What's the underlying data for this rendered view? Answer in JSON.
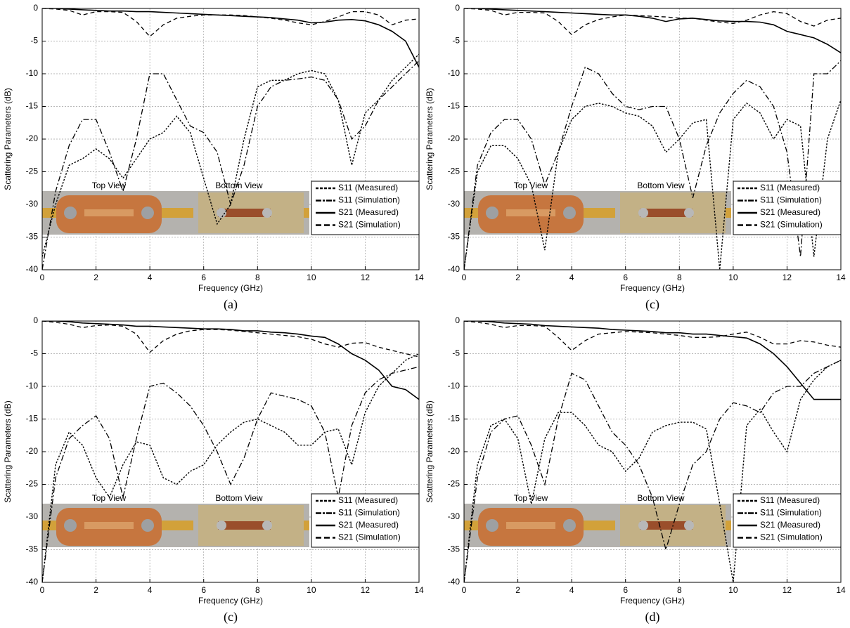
{
  "chart_data": [
    {
      "type": "line",
      "caption": "(a)",
      "xlabel": "Frequency (GHz)",
      "ylabel": "Scattering Parameters (dB)",
      "inset_labels": [
        "Top View",
        "Bottom View"
      ],
      "legend": "lower right",
      "grid": true,
      "xlim": [
        0,
        14
      ],
      "ylim": [
        -40,
        0
      ],
      "xticks": [
        0,
        2,
        4,
        6,
        8,
        10,
        12,
        14
      ],
      "yticks": [
        0,
        -5,
        -10,
        -15,
        -20,
        -25,
        -30,
        -35,
        -40
      ],
      "x": [
        0,
        0.5,
        1,
        1.5,
        2,
        2.5,
        3,
        3.5,
        4,
        4.5,
        5,
        5.5,
        6,
        6.5,
        7,
        7.5,
        8,
        8.5,
        9,
        9.5,
        10,
        10.5,
        11,
        11.5,
        12,
        12.5,
        13,
        13.5,
        14
      ],
      "series": [
        {
          "name": "S11 (Measured)",
          "style": "dotted",
          "color": "#000000",
          "values": [
            -38,
            -30,
            -24,
            -23,
            -21.5,
            -23,
            -26,
            -23,
            -20,
            -19,
            -16.5,
            -19,
            -26,
            -33,
            -30,
            -20,
            -12,
            -11,
            -11,
            -10,
            -9.5,
            -10,
            -14,
            -24,
            -16,
            -14,
            -11,
            -9,
            -7
          ]
        },
        {
          "name": "S11 (Simulation)",
          "style": "dash-dot",
          "color": "#000000",
          "values": [
            -40,
            -28,
            -21,
            -17,
            -17,
            -22,
            -28,
            -20,
            -10,
            -10,
            -14,
            -18,
            -19,
            -22,
            -30,
            -24,
            -15,
            -12,
            -11,
            -10.8,
            -10.5,
            -11,
            -14,
            -20,
            -18,
            -14,
            -12,
            -10,
            -8
          ]
        },
        {
          "name": "S21 (Measured)",
          "style": "solid",
          "color": "#000000",
          "values": [
            0,
            0,
            -0.1,
            -0.2,
            -0.3,
            -0.4,
            -0.4,
            -0.5,
            -0.5,
            -0.6,
            -0.7,
            -0.8,
            -0.9,
            -1,
            -1.1,
            -1.2,
            -1.3,
            -1.4,
            -1.6,
            -1.8,
            -2.2,
            -2.1,
            -1.8,
            -1.7,
            -1.9,
            -2.5,
            -3.5,
            -5,
            -9
          ]
        },
        {
          "name": "S21 (Simulation)",
          "style": "dashed",
          "color": "#000000",
          "values": [
            0,
            -0.1,
            -0.3,
            -1,
            -0.5,
            -0.5,
            -0.6,
            -2,
            -4.3,
            -2.5,
            -1.5,
            -1.2,
            -1,
            -1,
            -1,
            -1.1,
            -1.3,
            -1.5,
            -1.8,
            -2.2,
            -2.5,
            -2,
            -1.3,
            -0.5,
            -0.5,
            -1,
            -2.5,
            -1.8,
            -1.6
          ]
        }
      ]
    },
    {
      "type": "line",
      "caption": "(c)",
      "xlabel": "Frequency (GHz)",
      "ylabel": "Scattering Parameters (dB)",
      "inset_labels": [
        "Top View",
        "Bottom View"
      ],
      "legend": "lower right",
      "grid": true,
      "xlim": [
        0,
        14
      ],
      "ylim": [
        -40,
        0
      ],
      "xticks": [
        0,
        2,
        4,
        6,
        8,
        10,
        12,
        14
      ],
      "yticks": [
        0,
        -5,
        -10,
        -15,
        -20,
        -25,
        -30,
        -35,
        -40
      ],
      "x": [
        0,
        0.5,
        1,
        1.5,
        2,
        2.5,
        3,
        3.5,
        4,
        4.5,
        5,
        5.5,
        6,
        6.5,
        7,
        7.5,
        8,
        8.5,
        9,
        9.5,
        10,
        10.5,
        11,
        11.5,
        12,
        12.5,
        13,
        13.5,
        14
      ],
      "series": [
        {
          "name": "S11 (Measured)",
          "style": "dotted",
          "color": "#000000",
          "values": [
            -40,
            -25,
            -21,
            -21,
            -23,
            -27,
            -37,
            -22,
            -17,
            -15,
            -14.5,
            -15,
            -16,
            -16.5,
            -18,
            -22,
            -20,
            -17.5,
            -17,
            -40,
            -17,
            -14.5,
            -16,
            -20,
            -17,
            -18,
            -38,
            -20,
            -14
          ]
        },
        {
          "name": "S11 (Simulation)",
          "style": "dash-dot",
          "color": "#000000",
          "values": [
            -40,
            -24,
            -19,
            -17,
            -17,
            -20,
            -27,
            -22,
            -15,
            -9,
            -10,
            -13,
            -15,
            -15.5,
            -15,
            -15,
            -20,
            -29,
            -21,
            -16,
            -13,
            -11,
            -12,
            -15,
            -22,
            -38,
            -10,
            -10,
            -8
          ]
        },
        {
          "name": "S21 (Measured)",
          "style": "solid",
          "color": "#000000",
          "values": [
            0,
            0,
            -0.1,
            -0.2,
            -0.3,
            -0.4,
            -0.5,
            -0.6,
            -0.7,
            -0.8,
            -0.9,
            -1,
            -1,
            -1.2,
            -1.5,
            -2,
            -1.6,
            -1.5,
            -1.7,
            -1.9,
            -2,
            -2,
            -2.1,
            -2.5,
            -3.5,
            -4,
            -4.5,
            -5.5,
            -6.8
          ]
        },
        {
          "name": "S21 (Simulation)",
          "style": "dashed",
          "color": "#000000",
          "values": [
            0,
            -0.1,
            -0.3,
            -1,
            -0.6,
            -0.6,
            -0.7,
            -2,
            -4,
            -2.5,
            -1.7,
            -1.3,
            -1,
            -1.1,
            -1.2,
            -1.3,
            -1.5,
            -1.5,
            -1.8,
            -2.1,
            -2.3,
            -1.8,
            -1,
            -0.5,
            -0.8,
            -2,
            -2.7,
            -1.8,
            -1.5
          ]
        }
      ]
    },
    {
      "type": "line",
      "caption": "(c)",
      "xlabel": "Frequency (GHz)",
      "ylabel": "Scattering Parameters (dB)",
      "inset_labels": [
        "Top View",
        "Bottom View"
      ],
      "legend": "lower right",
      "grid": true,
      "xlim": [
        0,
        14
      ],
      "ylim": [
        -40,
        0
      ],
      "xticks": [
        0,
        2,
        4,
        6,
        8,
        10,
        12,
        14
      ],
      "yticks": [
        0,
        -5,
        -10,
        -15,
        -20,
        -25,
        -30,
        -35,
        -40
      ],
      "x": [
        0,
        0.5,
        1,
        1.5,
        2,
        2.5,
        3,
        3.5,
        4,
        4.5,
        5,
        5.5,
        6,
        6.5,
        7,
        7.5,
        8,
        8.5,
        9,
        9.5,
        10,
        10.5,
        11,
        11.5,
        12,
        12.5,
        13,
        13.5,
        14
      ],
      "series": [
        {
          "name": "S11 (Measured)",
          "style": "dotted",
          "color": "#000000",
          "values": [
            -40,
            -22,
            -17,
            -19,
            -24,
            -27,
            -22,
            -18.5,
            -19,
            -24,
            -25,
            -23,
            -22,
            -19,
            -17,
            -15.5,
            -15,
            -16,
            -17,
            -19,
            -19,
            -17,
            -16.5,
            -22,
            -14,
            -10,
            -8,
            -6,
            -5
          ]
        },
        {
          "name": "S11 (Simulation)",
          "style": "dash-dot",
          "color": "#000000",
          "values": [
            -40,
            -24,
            -18,
            -16,
            -14.5,
            -18,
            -27,
            -18,
            -10,
            -9.5,
            -11,
            -13,
            -16,
            -20,
            -25,
            -21,
            -15,
            -11,
            -11.5,
            -12,
            -13,
            -17,
            -27,
            -16,
            -11,
            -9,
            -8,
            -7.5,
            -7
          ]
        },
        {
          "name": "S21 (Measured)",
          "style": "solid",
          "color": "#000000",
          "values": [
            0,
            0,
            -0.1,
            -0.3,
            -0.4,
            -0.5,
            -0.6,
            -0.8,
            -0.8,
            -0.9,
            -1,
            -1.1,
            -1.2,
            -1.2,
            -1.3,
            -1.5,
            -1.5,
            -1.7,
            -1.8,
            -2,
            -2.3,
            -2.5,
            -3.5,
            -5,
            -6,
            -7.5,
            -10,
            -10.5,
            -12
          ]
        },
        {
          "name": "S21 (Simulation)",
          "style": "dashed",
          "color": "#000000",
          "values": [
            0,
            -0.2,
            -0.5,
            -1,
            -0.7,
            -0.6,
            -0.8,
            -2,
            -4.8,
            -3,
            -2,
            -1.5,
            -1.3,
            -1.3,
            -1.4,
            -1.6,
            -1.8,
            -2,
            -2.2,
            -2.4,
            -2.8,
            -3.5,
            -4,
            -3.4,
            -3.3,
            -4,
            -4.5,
            -5,
            -5.5
          ]
        }
      ]
    },
    {
      "type": "line",
      "caption": "(d)",
      "xlabel": "Frequency (GHz)",
      "ylabel": "Scattering Parameters (dB)",
      "inset_labels": [
        "Top View",
        "Bottom View"
      ],
      "legend": "lower right",
      "grid": true,
      "xlim": [
        0,
        14
      ],
      "ylim": [
        -40,
        0
      ],
      "xticks": [
        0,
        2,
        4,
        6,
        8,
        10,
        12,
        14
      ],
      "yticks": [
        0,
        -5,
        -10,
        -15,
        -20,
        -25,
        -30,
        -35,
        -40
      ],
      "x": [
        0,
        0.5,
        1,
        1.5,
        2,
        2.5,
        3,
        3.5,
        4,
        4.5,
        5,
        5.5,
        6,
        6.5,
        7,
        7.5,
        8,
        8.5,
        9,
        9.5,
        10,
        10.5,
        11,
        11.5,
        12,
        12.5,
        13,
        13.5,
        14
      ],
      "series": [
        {
          "name": "S11 (Measured)",
          "style": "dotted",
          "color": "#000000",
          "values": [
            -40,
            -22,
            -16,
            -15,
            -18,
            -28,
            -18,
            -14,
            -14,
            -16,
            -19,
            -20,
            -23,
            -21,
            -17,
            -16,
            -15.5,
            -15.5,
            -16.5,
            -28,
            -40,
            -16,
            -13.5,
            -17,
            -20,
            -12,
            -9,
            -7,
            -6
          ]
        },
        {
          "name": "S11 (Simulation)",
          "style": "dash-dot",
          "color": "#000000",
          "values": [
            -40,
            -24,
            -17,
            -15,
            -14.5,
            -19,
            -25,
            -15,
            -8,
            -9,
            -13,
            -17,
            -19,
            -22,
            -27,
            -35,
            -28,
            -22,
            -20,
            -15,
            -12.5,
            -13,
            -14,
            -11,
            -10,
            -10,
            -8,
            -7,
            -6
          ]
        },
        {
          "name": "S21 (Measured)",
          "style": "solid",
          "color": "#000000",
          "values": [
            0,
            0,
            -0.1,
            -0.3,
            -0.4,
            -0.5,
            -0.7,
            -0.8,
            -0.9,
            -1,
            -1.1,
            -1.3,
            -1.4,
            -1.5,
            -1.6,
            -1.8,
            -1.8,
            -2,
            -2,
            -2.2,
            -2.4,
            -2.6,
            -3.5,
            -5,
            -7,
            -9.5,
            -12,
            -12,
            -12
          ]
        },
        {
          "name": "S21 (Simulation)",
          "style": "dashed",
          "color": "#000000",
          "values": [
            0,
            -0.2,
            -0.5,
            -1,
            -0.7,
            -0.7,
            -0.8,
            -2.5,
            -4.5,
            -3,
            -2,
            -1.8,
            -1.6,
            -1.7,
            -1.8,
            -2,
            -2.2,
            -2.5,
            -2.5,
            -2.4,
            -2,
            -1.7,
            -2.5,
            -3.5,
            -3.5,
            -3,
            -3.2,
            -3.7,
            -4
          ]
        }
      ]
    }
  ]
}
